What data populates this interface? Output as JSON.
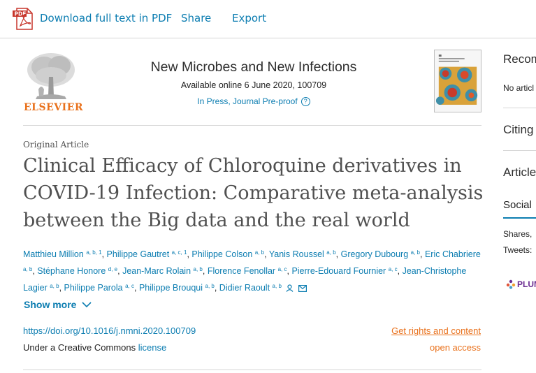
{
  "toolbar": {
    "pdf_label": "Download full text in PDF",
    "share_label": "Share",
    "export_label": "Export",
    "pdf_badge": "PDF"
  },
  "masthead": {
    "publisher": "ELSEVIER",
    "journal": "New Microbes and New Infections",
    "availability": "Available online 6 June 2020, 100709",
    "status": "In Press, Journal Pre-proof",
    "help_icon": "question-circle-icon"
  },
  "article": {
    "type": "Original Article",
    "title": "Clinical Efficacy of Chloroquine derivatives in COVID-19 Infection: Comparative meta-analysis between the Big data and the real world",
    "authors": [
      {
        "name": "Matthieu Million",
        "aff": "a, b, 1"
      },
      {
        "name": "Philippe Gautret",
        "aff": "a, c, 1"
      },
      {
        "name": "Philippe Colson",
        "aff": "a, b"
      },
      {
        "name": "Yanis Roussel",
        "aff": "a, b"
      },
      {
        "name": "Gregory Dubourg",
        "aff": "a, b"
      },
      {
        "name": "Eric Chabriere",
        "aff": "a, b"
      },
      {
        "name": "Stéphane Honore",
        "aff": "d, e"
      },
      {
        "name": "Jean-Marc Rolain",
        "aff": "a, b"
      },
      {
        "name": "Florence Fenollar",
        "aff": "a, c"
      },
      {
        "name": "Pierre-Edouard Fournier",
        "aff": "a, c"
      },
      {
        "name": "Jean-Christophe Lagier",
        "aff": "a, b"
      },
      {
        "name": "Philippe Parola",
        "aff": "a, c"
      },
      {
        "name": "Philippe Brouqui",
        "aff": "a, b"
      },
      {
        "name": "Didier Raoult",
        "aff": "a, b"
      }
    ],
    "show_more": "Show more",
    "doi": "https://doi.org/10.1016/j.nmni.2020.100709",
    "license_prefix": "Under a Creative Commons ",
    "license_link": "license",
    "rights": "Get rights and content",
    "open_access": "open access"
  },
  "sidebar": {
    "recommended": "Recom",
    "no_articles": "No articl",
    "citing": "Citing",
    "article_metrics": "Article",
    "social": "Social",
    "shares": "Shares,",
    "tweets": "Tweets:",
    "plumx": "PLUM"
  },
  "colors": {
    "link": "#0c7db1",
    "accent_orange": "#e9711c",
    "plumx_purple": "#6b2c91"
  }
}
